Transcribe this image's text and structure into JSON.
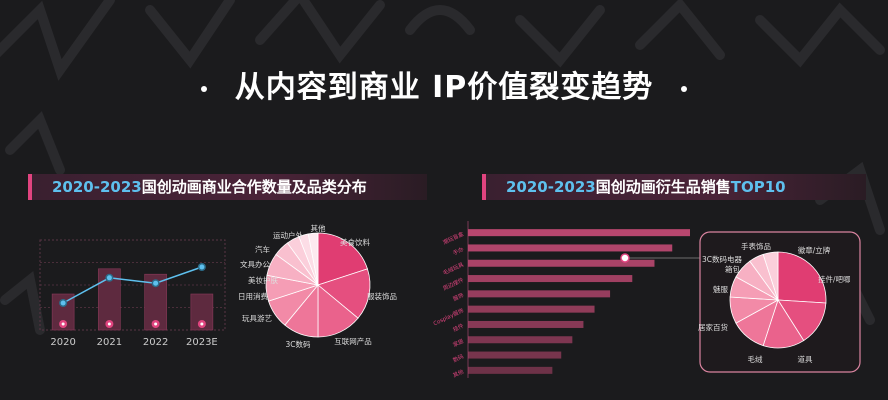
{
  "page": {
    "title": "从内容到商业 IP价值裂变趋势"
  },
  "left_panel": {
    "header_year": "2020-2023",
    "header_text": "国创动画商业合作数量及品类分布"
  },
  "right_panel": {
    "header_year": "2020-2023",
    "header_text": "国创动画衍生品销售",
    "header_highlight": "TOP10"
  },
  "colors": {
    "accent": "#e0447f",
    "line": "#5ec0ee",
    "pink_dark": "#e03d72",
    "pink_light": "#fbd2e0"
  },
  "chart_data": [
    {
      "type": "bar",
      "categories": [
        "2020",
        "2021",
        "2022",
        "2023E"
      ],
      "values": [
        40,
        68,
        62,
        40
      ],
      "line_values": [
        30,
        58,
        52,
        70
      ],
      "ylim": [
        0,
        100
      ],
      "grid": true
    },
    {
      "type": "pie",
      "labels": [
        "美食饮料",
        "服装饰品",
        "互联网产品",
        "3C数码",
        "玩具游艺",
        "日用消费",
        "美妆护肤",
        "文具办公",
        "汽车",
        "运动户外",
        "其他"
      ],
      "values": [
        20,
        16,
        14,
        11,
        9,
        8,
        7,
        5,
        4,
        3,
        3
      ]
    },
    {
      "type": "bar",
      "orientation": "horizontal",
      "categories": [
        "潮玩盲盒",
        "手办",
        "毛绒玩具",
        "周边摆件",
        "服饰",
        "Cosplay服饰",
        "挂件",
        "家居",
        "数码",
        "其他"
      ],
      "values": [
        100,
        92,
        84,
        74,
        64,
        57,
        52,
        47,
        42,
        38
      ],
      "xlim": [
        0,
        100
      ]
    },
    {
      "type": "pie",
      "labels": [
        "挂件/吧唧",
        "道具",
        "毛绒",
        "居家百货",
        "魅服",
        "箱包",
        "3C数码电器",
        "手表饰品",
        "徽章/立牌"
      ],
      "values": [
        26,
        15,
        14,
        12,
        9,
        7,
        7,
        5,
        5
      ]
    }
  ]
}
